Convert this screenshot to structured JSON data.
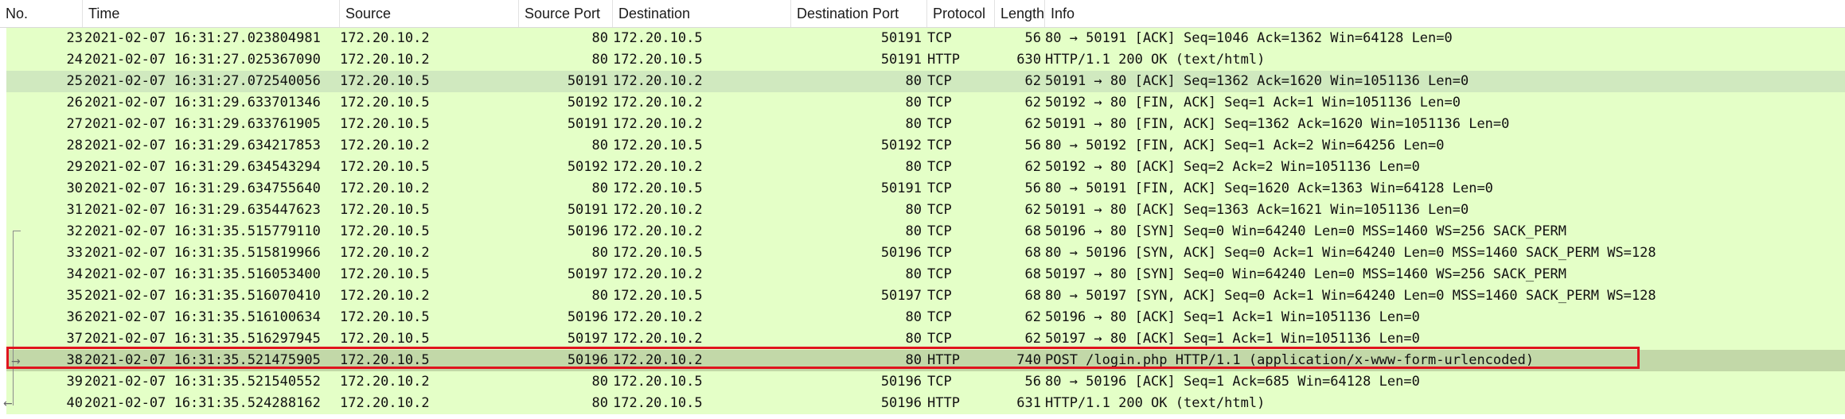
{
  "columns": {
    "no": "No.",
    "time": "Time",
    "source": "Source",
    "source_port": "Source Port",
    "destination": "Destination",
    "destination_port": "Destination Port",
    "protocol": "Protocol",
    "length": "Length",
    "info": "Info"
  },
  "packets": [
    {
      "no": "23",
      "time": "2021-02-07 16:31:27.023804981",
      "src": "172.20.10.2",
      "sport": "80",
      "dst": "172.20.10.5",
      "dport": "50191",
      "proto": "TCP",
      "len": "56",
      "info": "80 → 50191 [ACK] Seq=1046 Ack=1362 Win=64128 Len=0"
    },
    {
      "no": "24",
      "time": "2021-02-07 16:31:27.025367090",
      "src": "172.20.10.2",
      "sport": "80",
      "dst": "172.20.10.5",
      "dport": "50191",
      "proto": "HTTP",
      "len": "630",
      "info": "HTTP/1.1 200 OK  (text/html)"
    },
    {
      "no": "25",
      "time": "2021-02-07 16:31:27.072540056",
      "src": "172.20.10.5",
      "sport": "50191",
      "dst": "172.20.10.2",
      "dport": "80",
      "proto": "TCP",
      "len": "62",
      "info": "50191 → 80 [ACK] Seq=1362 Ack=1620 Win=1051136 Len=0"
    },
    {
      "no": "26",
      "time": "2021-02-07 16:31:29.633701346",
      "src": "172.20.10.5",
      "sport": "50192",
      "dst": "172.20.10.2",
      "dport": "80",
      "proto": "TCP",
      "len": "62",
      "info": "50192 → 80 [FIN, ACK] Seq=1 Ack=1 Win=1051136 Len=0"
    },
    {
      "no": "27",
      "time": "2021-02-07 16:31:29.633761905",
      "src": "172.20.10.5",
      "sport": "50191",
      "dst": "172.20.10.2",
      "dport": "80",
      "proto": "TCP",
      "len": "62",
      "info": "50191 → 80 [FIN, ACK] Seq=1362 Ack=1620 Win=1051136 Len=0"
    },
    {
      "no": "28",
      "time": "2021-02-07 16:31:29.634217853",
      "src": "172.20.10.2",
      "sport": "80",
      "dst": "172.20.10.5",
      "dport": "50192",
      "proto": "TCP",
      "len": "56",
      "info": "80 → 50192 [FIN, ACK] Seq=1 Ack=2 Win=64256 Len=0"
    },
    {
      "no": "29",
      "time": "2021-02-07 16:31:29.634543294",
      "src": "172.20.10.5",
      "sport": "50192",
      "dst": "172.20.10.2",
      "dport": "80",
      "proto": "TCP",
      "len": "62",
      "info": "50192 → 80 [ACK] Seq=2 Ack=2 Win=1051136 Len=0"
    },
    {
      "no": "30",
      "time": "2021-02-07 16:31:29.634755640",
      "src": "172.20.10.2",
      "sport": "80",
      "dst": "172.20.10.5",
      "dport": "50191",
      "proto": "TCP",
      "len": "56",
      "info": "80 → 50191 [FIN, ACK] Seq=1620 Ack=1363 Win=64128 Len=0"
    },
    {
      "no": "31",
      "time": "2021-02-07 16:31:29.635447623",
      "src": "172.20.10.5",
      "sport": "50191",
      "dst": "172.20.10.2",
      "dport": "80",
      "proto": "TCP",
      "len": "62",
      "info": "50191 → 80 [ACK] Seq=1363 Ack=1621 Win=1051136 Len=0"
    },
    {
      "no": "32",
      "time": "2021-02-07 16:31:35.515779110",
      "src": "172.20.10.5",
      "sport": "50196",
      "dst": "172.20.10.2",
      "dport": "80",
      "proto": "TCP",
      "len": "68",
      "info": "50196 → 80 [SYN] Seq=0 Win=64240 Len=0 MSS=1460 WS=256 SACK_PERM"
    },
    {
      "no": "33",
      "time": "2021-02-07 16:31:35.515819966",
      "src": "172.20.10.2",
      "sport": "80",
      "dst": "172.20.10.5",
      "dport": "50196",
      "proto": "TCP",
      "len": "68",
      "info": "80 → 50196 [SYN, ACK] Seq=0 Ack=1 Win=64240 Len=0 MSS=1460 SACK_PERM WS=128"
    },
    {
      "no": "34",
      "time": "2021-02-07 16:31:35.516053400",
      "src": "172.20.10.5",
      "sport": "50197",
      "dst": "172.20.10.2",
      "dport": "80",
      "proto": "TCP",
      "len": "68",
      "info": "50197 → 80 [SYN] Seq=0 Win=64240 Len=0 MSS=1460 WS=256 SACK_PERM"
    },
    {
      "no": "35",
      "time": "2021-02-07 16:31:35.516070410",
      "src": "172.20.10.2",
      "sport": "80",
      "dst": "172.20.10.5",
      "dport": "50197",
      "proto": "TCP",
      "len": "68",
      "info": "80 → 50197 [SYN, ACK] Seq=0 Ack=1 Win=64240 Len=0 MSS=1460 SACK_PERM WS=128"
    },
    {
      "no": "36",
      "time": "2021-02-07 16:31:35.516100634",
      "src": "172.20.10.5",
      "sport": "50196",
      "dst": "172.20.10.2",
      "dport": "80",
      "proto": "TCP",
      "len": "62",
      "info": "50196 → 80 [ACK] Seq=1 Ack=1 Win=1051136 Len=0"
    },
    {
      "no": "37",
      "time": "2021-02-07 16:31:35.516297945",
      "src": "172.20.10.5",
      "sport": "50197",
      "dst": "172.20.10.2",
      "dport": "80",
      "proto": "TCP",
      "len": "62",
      "info": "50197 → 80 [ACK] Seq=1 Ack=1 Win=1051136 Len=0"
    },
    {
      "no": "38",
      "time": "2021-02-07 16:31:35.521475905",
      "src": "172.20.10.5",
      "sport": "50196",
      "dst": "172.20.10.2",
      "dport": "80",
      "proto": "HTTP",
      "len": "740",
      "info": "POST /login.php HTTP/1.1  (application/x-www-form-urlencoded)"
    },
    {
      "no": "39",
      "time": "2021-02-07 16:31:35.521540552",
      "src": "172.20.10.2",
      "sport": "80",
      "dst": "172.20.10.5",
      "dport": "50196",
      "proto": "TCP",
      "len": "56",
      "info": "80 → 50196 [ACK] Seq=1 Ack=685 Win=64128 Len=0"
    },
    {
      "no": "40",
      "time": "2021-02-07 16:31:35.524288162",
      "src": "172.20.10.2",
      "sport": "80",
      "dst": "172.20.10.5",
      "dport": "50196",
      "proto": "HTTP",
      "len": "631",
      "info": "HTTP/1.1 200 OK  (text/html)"
    }
  ],
  "selected_row": "25",
  "flagged_row": "38",
  "colors": {
    "row_bg": "#e4ffc7",
    "selected_bg": "#d0e9bf",
    "highlight_border": "#e0141e"
  },
  "icons": {
    "request_arrow": "right-arrow-icon",
    "response_arrow": "left-arrow-icon",
    "conversation_bracket": "bracket-line"
  }
}
